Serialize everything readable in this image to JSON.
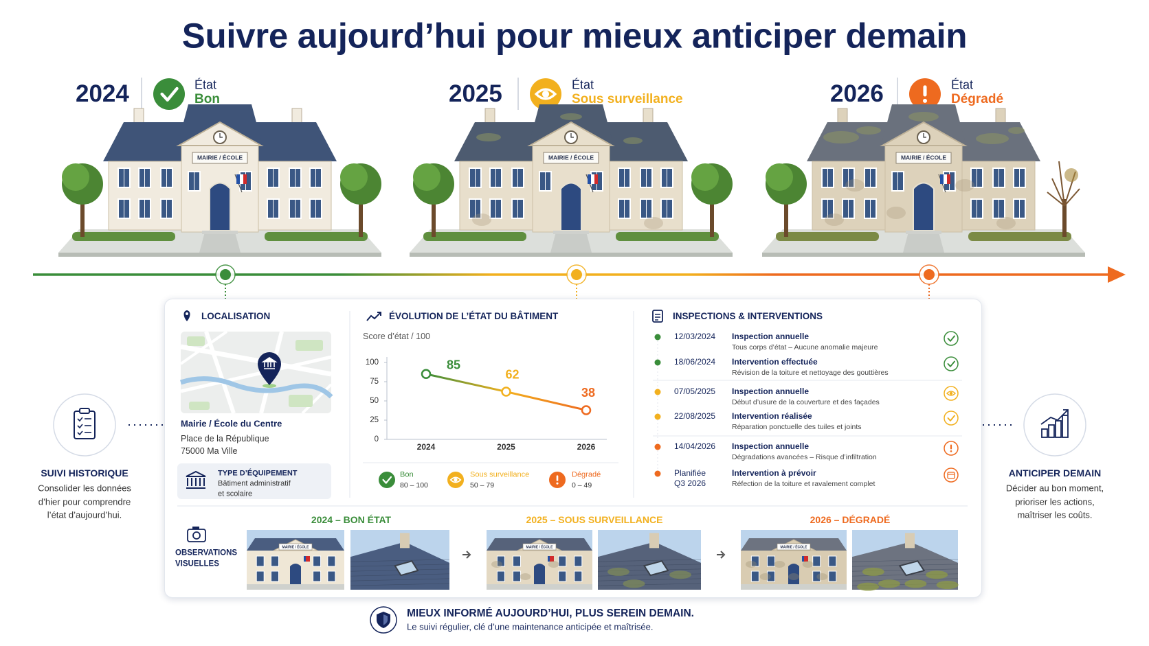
{
  "title": "Suivre aujourd’hui pour mieux anticiper demain",
  "building_sign": "MAIRIE / ÉCOLE",
  "timeline": [
    {
      "year": "2024",
      "label": "État",
      "status": "Bon",
      "color": "#3a8d3a",
      "icon": "check"
    },
    {
      "year": "2025",
      "label": "État",
      "status": "Sous surveillance",
      "color": "#f2b01e",
      "icon": "eye"
    },
    {
      "year": "2026",
      "label": "État",
      "status": "Dégradé",
      "color": "#ee6a1f",
      "icon": "alert"
    }
  ],
  "history": {
    "title": "SUIVI HISTORIQUE",
    "lines": [
      "Consolider les données",
      "d’hier pour comprendre",
      "l’état d’aujourd’hui."
    ]
  },
  "anticipate": {
    "title": "ANTICIPER DEMAIN",
    "lines": [
      "Décider au bon moment,",
      "prioriser les actions,",
      "maîtriser les coûts."
    ]
  },
  "location": {
    "heading": "LOCALISATION",
    "name": "Mairie / École du Centre",
    "address": [
      "Place de la République",
      "75000 Ma Ville"
    ],
    "equipment_label": "TYPE D’ÉQUIPEMENT",
    "equipment": [
      "Bâtiment administratif",
      "et scolaire"
    ]
  },
  "chart_data": {
    "type": "line",
    "title": "ÉVOLUTION DE L’ÉTAT DU BÂTIMENT",
    "subtitle": "Score d’état / 100",
    "categories": [
      "2024",
      "2025",
      "2026"
    ],
    "values": [
      85,
      62,
      38
    ],
    "point_colors": [
      "#3a8d3a",
      "#f2b01e",
      "#ee6a1f"
    ],
    "ylim": [
      0,
      100
    ],
    "yticks": [
      0,
      25,
      50,
      75,
      100
    ],
    "grid": false,
    "legend": [
      {
        "name": "Bon",
        "range": "80 – 100",
        "color": "#3a8d3a",
        "icon": "check"
      },
      {
        "name": "Sous surveillance",
        "range": "50 – 79",
        "color": "#f2b01e",
        "icon": "eye"
      },
      {
        "name": "Dégradé",
        "range": "0 – 49",
        "color": "#ee6a1f",
        "icon": "alert"
      }
    ]
  },
  "inspections": {
    "heading": "INSPECTIONS & INTERVENTIONS",
    "items": [
      {
        "date": [
          "12/03/2024"
        ],
        "title": "Inspection annuelle",
        "detail": "Tous corps d’état – Aucune anomalie majeure",
        "color": "#3a8d3a",
        "icon": "check"
      },
      {
        "date": [
          "18/06/2024"
        ],
        "title": "Intervention effectuée",
        "detail": "Révision de la toiture et nettoyage des gouttières",
        "color": "#3a8d3a",
        "icon": "check"
      },
      {
        "date": [
          "07/05/2025"
        ],
        "title": "Inspection annuelle",
        "detail": "Début d’usure de la couverture et des façades",
        "color": "#f2b01e",
        "icon": "eye"
      },
      {
        "date": [
          "22/08/2025"
        ],
        "title": "Intervention réalisée",
        "detail": "Réparation ponctuelle des tuiles et joints",
        "color": "#f2b01e",
        "icon": "check"
      },
      {
        "date": [
          "14/04/2026"
        ],
        "title": "Inspection annuelle",
        "detail": "Dégradations avancées – Risque d’infiltration",
        "color": "#ee6a1f",
        "icon": "alert"
      },
      {
        "date": [
          "Planifiée",
          "Q3 2026"
        ],
        "title": "Intervention à prévoir",
        "detail": "Réfection de la toiture et ravalement complet",
        "color": "#ee6a1f",
        "icon": "calendar"
      }
    ]
  },
  "observations": {
    "heading": [
      "OBSERVATIONS",
      "VISUELLES"
    ],
    "groups": [
      {
        "label": "2024 – BON ÉTAT",
        "color": "#3a8d3a"
      },
      {
        "label": "2025 – SOUS SURVEILLANCE",
        "color": "#f2b01e"
      },
      {
        "label": "2026 – DÉGRADÉ",
        "color": "#ee6a1f"
      }
    ]
  },
  "footer": {
    "title": "MIEUX INFORMÉ AUJOURD’HUI, PLUS SEREIN DEMAIN.",
    "text": "Le suivi régulier, clé d’une maintenance anticipée et maîtrisée."
  }
}
